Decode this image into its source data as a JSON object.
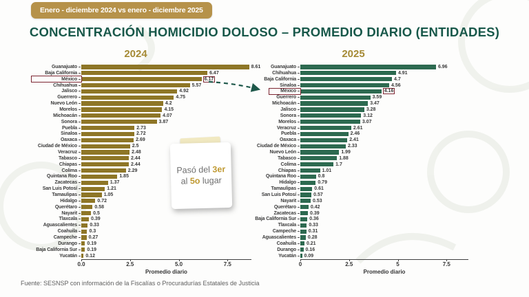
{
  "banner": {
    "label": "Enero - diciembre  2024 vs enero - diciembre 2025"
  },
  "title": "CONCENTRACIÓN HOMICIDIO DOLOSO – PROMEDIO DIARIO (ENTIDADES)",
  "footer": "Fuente: SESNSP con información de la Fiscalías o Procuradurías Estatales de Justicia",
  "annotation": {
    "lines": [
      [
        {
          "t": "Pasó del ",
          "accent": false
        },
        {
          "t": "3er",
          "accent": true
        }
      ],
      [
        {
          "t": "al ",
          "accent": false
        },
        {
          "t": "5o",
          "accent": true
        },
        {
          "t": " lugar",
          "accent": false
        }
      ]
    ]
  },
  "colors": {
    "banner_bg": "#b6924a",
    "title_text": "#18584a",
    "chart_title_gold": "#a58a35",
    "bar_2024": "#8e7627",
    "bar_2025": "#2d6a50",
    "highlight_box": "#7c2531",
    "arrow": "#1e584a",
    "note_accent": "#c09a33"
  },
  "chart_data": [
    {
      "type": "bar",
      "orientation": "horizontal",
      "title": "2024",
      "xlabel": "Promedio diario",
      "xlim": [
        0,
        8.7
      ],
      "grid": false,
      "legend": "none",
      "bar_color": "#8e7627",
      "highlighted_category": "México",
      "xtick_values": [
        0,
        2.5,
        5,
        7.5
      ],
      "xtick_labels": [
        "0.0",
        "2.5",
        "5.0",
        "7.5"
      ],
      "categories": [
        "Guanajuato",
        "Baja California",
        "México",
        "Chihuahua",
        "Jalisco",
        "Guerrero",
        "Nuevo León",
        "Morelos",
        "Michoacán",
        "Sonora",
        "Puebla",
        "Sinaloa",
        "Oaxaca",
        "Ciudad de México",
        "Veracruz",
        "Tabasco",
        "Chiapas",
        "Colima",
        "Quintana Roo",
        "Zacatecas",
        "San Luis Potosí",
        "Tamaulipas",
        "Hidalgo",
        "Querétaro",
        "Nayarit",
        "Tlaxcala",
        "Aguascalientes",
        "Coahuila",
        "Campeche",
        "Durango",
        "Baja California Sur",
        "Yucatán"
      ],
      "values": [
        8.61,
        6.47,
        6.17,
        5.57,
        4.92,
        4.75,
        4.2,
        4.15,
        4.07,
        3.87,
        2.73,
        2.72,
        2.69,
        2.5,
        2.48,
        2.44,
        2.44,
        2.29,
        1.85,
        1.37,
        1.21,
        1.05,
        0.72,
        0.58,
        0.5,
        0.39,
        0.33,
        0.3,
        0.27,
        0.19,
        0.19,
        0.12
      ]
    },
    {
      "type": "bar",
      "orientation": "horizontal",
      "title": "2025",
      "xlabel": "Promedio diario",
      "xlim": [
        0,
        8.6
      ],
      "grid": false,
      "legend": "none",
      "bar_color": "#2d6a50",
      "highlighted_category": "México",
      "xtick_values": [
        0,
        2.5,
        5,
        7.5
      ],
      "xtick_labels": [
        "0",
        "2.5",
        "5",
        "7.5"
      ],
      "categories": [
        "Guanajuato",
        "Chihuahua",
        "Baja California",
        "Sinaloa",
        "México",
        "Guerrero",
        "Michoacán",
        "Jalisco",
        "Sonora",
        "Morelos",
        "Veracruz",
        "Puebla",
        "Oaxaca",
        "Ciudad de México",
        "Nuevo León",
        "Tabasco",
        "Colima",
        "Chiapas",
        "Quintana Roo",
        "Hidalgo",
        "Tamaulipas",
        "San Luis Potosí",
        "Nayarit",
        "Querétaro",
        "Zacatecas",
        "Baja California Sur",
        "Tlaxcala",
        "Campeche",
        "Aguascalientes",
        "Coahuila",
        "Durango",
        "Yucatán"
      ],
      "values": [
        6.96,
        4.91,
        4.7,
        4.56,
        4.16,
        3.59,
        3.47,
        3.28,
        3.12,
        3.07,
        2.61,
        2.46,
        2.41,
        2.33,
        1.99,
        1.88,
        1.7,
        1.01,
        0.8,
        0.79,
        0.61,
        0.57,
        0.53,
        0.42,
        0.39,
        0.36,
        0.33,
        0.31,
        0.28,
        0.21,
        0.16,
        0.09
      ]
    }
  ]
}
